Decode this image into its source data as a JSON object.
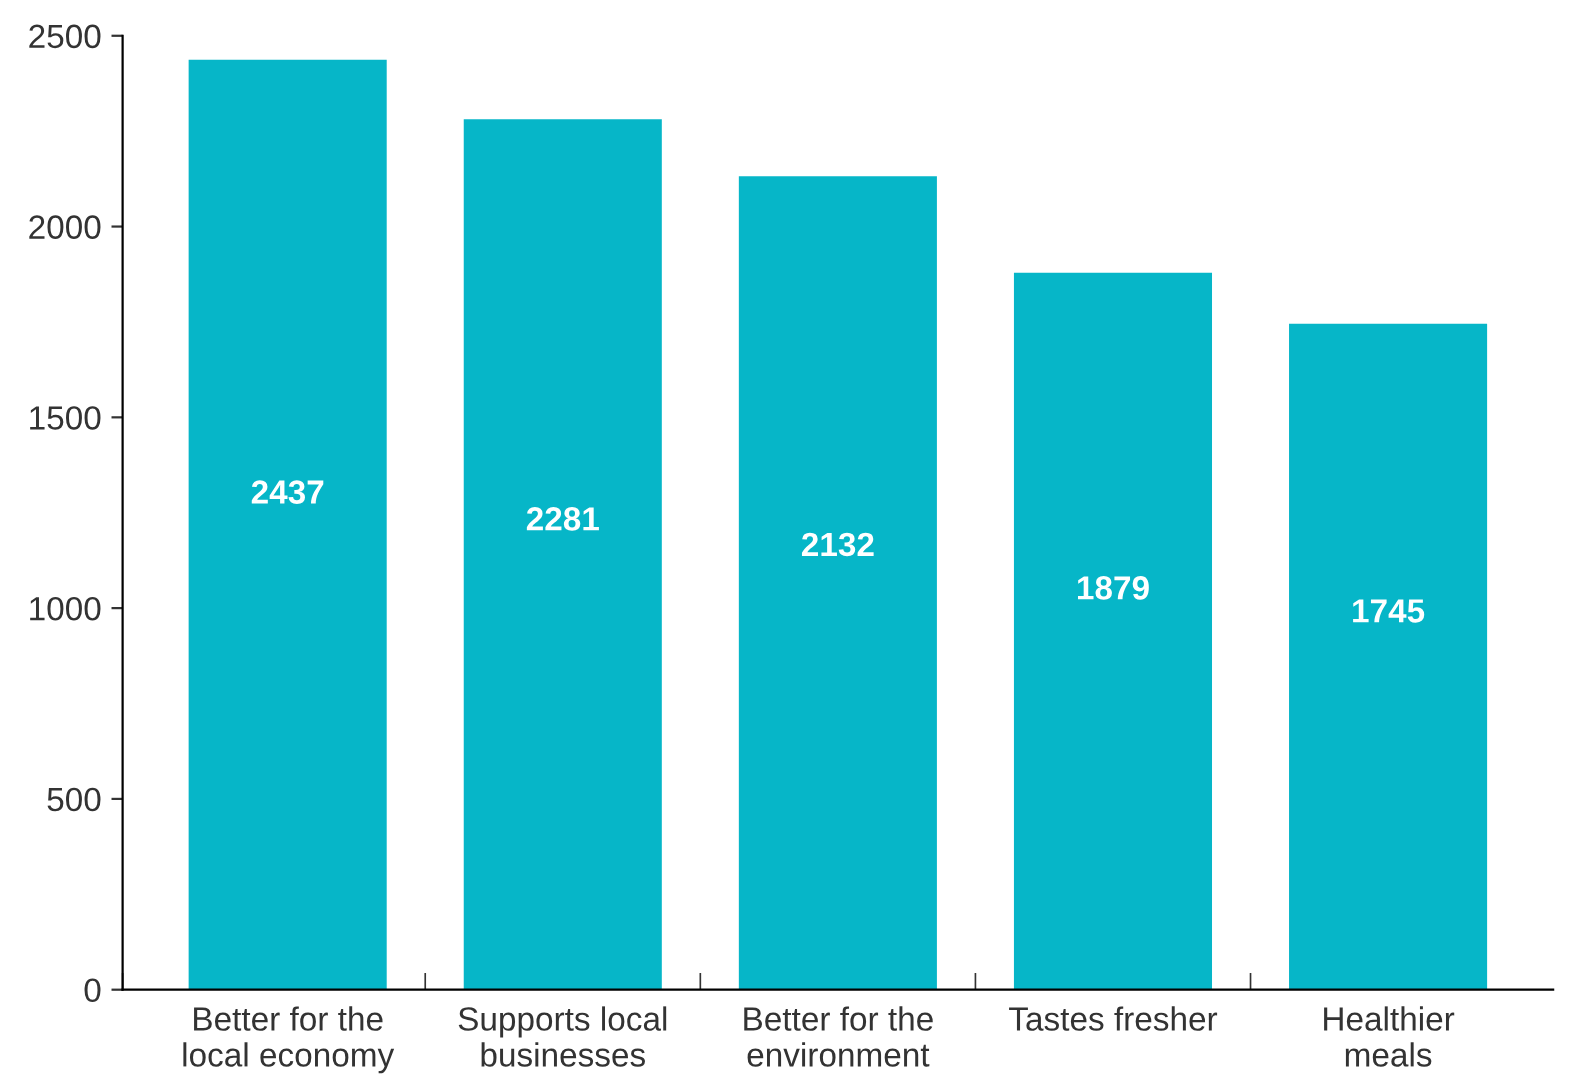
{
  "chart_data": {
    "type": "bar",
    "categories": [
      "Better for the\nlocal economy",
      "Supports local\nbusinesses",
      "Better for the\nenvironment",
      "Tastes fresher",
      "Healthier\nmeals"
    ],
    "values": [
      2437,
      2281,
      2132,
      1879,
      1745
    ],
    "color": "#06b6c8",
    "ylim": [
      0,
      2500
    ],
    "yticks": [
      0,
      500,
      1000,
      1500,
      2000,
      2500
    ],
    "data_labels": true,
    "grid": false,
    "legend": false
  }
}
